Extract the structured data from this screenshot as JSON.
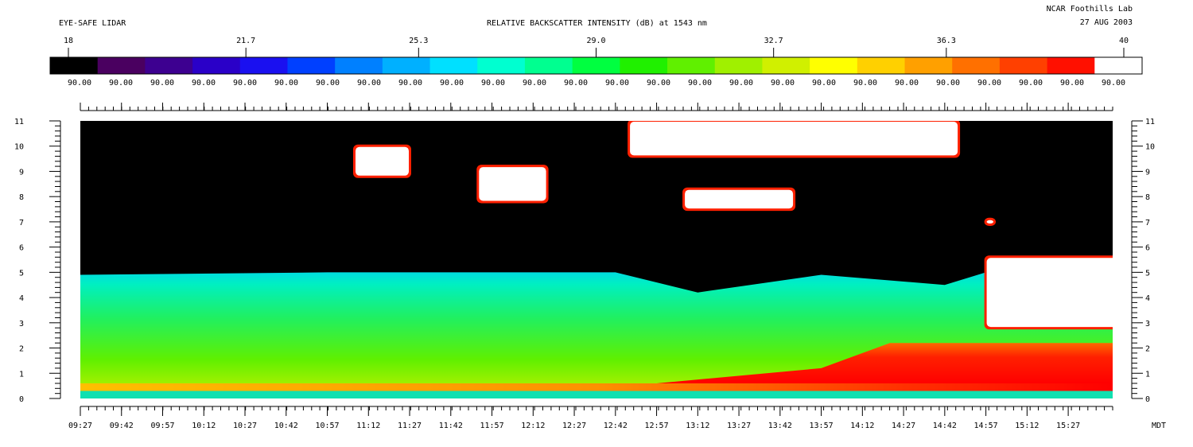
{
  "header": {
    "instrument": "EYE-SAFE LIDAR",
    "title": "RELATIVE BACKSCATTER INTENSITY (dB) at 1543 nm",
    "lab": "NCAR Foothills Lab",
    "date": "27 AUG 2003"
  },
  "colorbar": {
    "tick_labels": [
      "18",
      "21.7",
      "25.3",
      "29.0",
      "32.7",
      "36.3",
      "40"
    ],
    "tick_values": [
      18,
      21.7,
      25.3,
      29.0,
      32.7,
      36.3,
      40
    ],
    "range": [
      18,
      40
    ],
    "segment_label": "90.00",
    "segment_label_count": 26,
    "colors": [
      "#000000",
      "#4a0060",
      "#3d0090",
      "#2a00c8",
      "#1a10f0",
      "#0040ff",
      "#0080ff",
      "#00b0ff",
      "#00e0ff",
      "#00ffd0",
      "#00ff90",
      "#00ff40",
      "#20f000",
      "#60f000",
      "#a0f000",
      "#d0f000",
      "#ffff00",
      "#ffd000",
      "#ffa000",
      "#ff7000",
      "#ff4000",
      "#ff1000",
      "#ffffff"
    ]
  },
  "chart_data": {
    "type": "heatmap",
    "title": "RELATIVE BACKSCATTER INTENSITY (dB) at 1543 nm",
    "xlabel": "MDT",
    "ylabel": "",
    "x_tick_labels": [
      "09:27",
      "09:42",
      "09:57",
      "10:12",
      "10:27",
      "10:42",
      "10:57",
      "11:12",
      "11:27",
      "11:42",
      "11:57",
      "12:12",
      "12:27",
      "12:42",
      "12:57",
      "13:12",
      "13:27",
      "13:42",
      "13:57",
      "14:12",
      "14:27",
      "14:42",
      "14:57",
      "15:12",
      "15:27"
    ],
    "xlim_hours": [
      9.45,
      15.72
    ],
    "y_tick_labels": [
      "0",
      "1",
      "2",
      "3",
      "4",
      "5",
      "6",
      "7",
      "8",
      "9",
      "10",
      "11"
    ],
    "ylim": [
      0,
      11
    ],
    "color_scale_db": [
      18,
      40
    ],
    "features": {
      "boundary_layer_top_km": [
        {
          "time": "09:27",
          "km": 4.9
        },
        {
          "time": "10:57",
          "km": 5.0
        },
        {
          "time": "12:42",
          "km": 5.0
        },
        {
          "time": "13:12",
          "km": 4.2
        },
        {
          "time": "13:57",
          "km": 4.9
        },
        {
          "time": "14:42",
          "km": 4.5
        },
        {
          "time": "15:12",
          "km": 5.5
        },
        {
          "time": "15:30",
          "km": 5.0
        }
      ],
      "surface_high_backscatter_km": [
        0.3,
        0.6
      ],
      "afternoon_high_backscatter_top_km": 2.2,
      "cloud_layers_km": [
        {
          "start": "11:07",
          "end": "11:27",
          "base": 8.8,
          "top": 10.0
        },
        {
          "start": "11:52",
          "end": "12:17",
          "base": 7.8,
          "top": 9.2
        },
        {
          "start": "12:47",
          "end": "14:47",
          "base": 9.6,
          "top": 11.0
        },
        {
          "start": "13:07",
          "end": "13:47",
          "base": 7.5,
          "top": 8.3
        },
        {
          "start": "14:57",
          "end": "15:00",
          "base": 6.9,
          "top": 7.1
        },
        {
          "start": "14:57",
          "end": "15:47",
          "base": 2.8,
          "top": 5.6
        }
      ]
    }
  }
}
